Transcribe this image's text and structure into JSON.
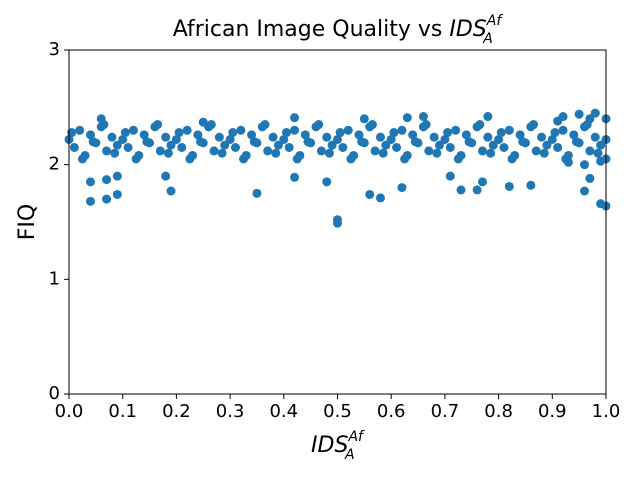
{
  "chart_data": {
    "type": "scatter",
    "title": "African Image Quality vs",
    "title_math": {
      "base": "IDS",
      "sup": "Af",
      "sub": "A"
    },
    "xlabel_math": {
      "base": "IDS",
      "sup": "Af",
      "sub": "A"
    },
    "ylabel": "FIQ",
    "color": "#1f77b4",
    "xlim": [
      0,
      1
    ],
    "ylim": [
      0,
      3
    ],
    "xticks": [
      {
        "value": 0,
        "label": "0.0"
      },
      0.1,
      0.2,
      0.3,
      0.4,
      0.5,
      0.6,
      0.7,
      0.8,
      0.9,
      {
        "value": 1,
        "label": "1.0"
      }
    ],
    "yticks": [
      0,
      1,
      2,
      3
    ],
    "x": [
      0,
      0.01,
      0.02,
      0.03,
      0.04,
      0.05,
      0.06,
      0.07,
      0.08,
      0.09,
      0.1,
      0.11,
      0.12,
      0.13,
      0.14,
      0.15,
      0.16,
      0.17,
      0.18,
      0.19,
      0.2,
      0.21,
      0.22,
      0.23,
      0.24,
      0.25,
      0.26,
      0.27,
      0.28,
      0.29,
      0.3,
      0.31,
      0.32,
      0.33,
      0.34,
      0.35,
      0.36,
      0.37,
      0.38,
      0.39,
      0.4,
      0.41,
      0.42,
      0.43,
      0.44,
      0.45,
      0.46,
      0.47,
      0.48,
      0.49,
      0.5,
      0.51,
      0.52,
      0.53,
      0.54,
      0.55,
      0.56,
      0.57,
      0.58,
      0.59,
      0.6,
      0.61,
      0.62,
      0.63,
      0.64,
      0.65,
      0.66,
      0.67,
      0.68,
      0.69,
      0.7,
      0.71,
      0.72,
      0.73,
      0.74,
      0.75,
      0.76,
      0.77,
      0.78,
      0.79,
      0.8,
      0.81,
      0.82,
      0.83,
      0.84,
      0.85,
      0.86,
      0.87,
      0.88,
      0.89,
      0.9,
      0.91,
      0.92,
      0.93,
      0.94,
      0.95,
      0.96,
      0.97,
      0.98,
      0.99,
      1,
      0.005,
      0.025,
      0.045,
      0.065,
      0.085,
      0.105,
      0.125,
      0.145,
      0.165,
      0.185,
      0.205,
      0.225,
      0.245,
      0.265,
      0.285,
      0.305,
      0.325,
      0.345,
      0.365,
      0.385,
      0.405,
      0.425,
      0.445,
      0.465,
      0.485,
      0.505,
      0.525,
      0.545,
      0.565,
      0.585,
      0.605,
      0.625,
      0.645,
      0.665,
      0.685,
      0.705,
      0.725,
      0.745,
      0.765,
      0.785,
      0.805,
      0.825,
      0.845,
      0.865,
      0.885,
      0.905,
      0.925,
      0.945,
      0.965,
      0.985,
      0.06,
      0.25,
      0.42,
      0.55,
      0.63,
      0.66,
      0.78,
      0.92,
      0.95,
      0.98,
      1,
      0.93,
      0.96,
      0.99,
      1,
      0.91,
      0.97,
      0.04,
      0.07,
      0.09,
      0.19,
      0.35,
      0.42,
      0.48,
      0.5,
      0.5,
      0.56,
      0.58,
      0.62,
      0.73,
      0.76,
      0.82,
      0.86,
      0.96,
      0.99,
      1,
      0.04,
      0.09,
      0.07,
      0.18,
      0.71,
      0.77,
      0.97
    ],
    "values": [
      2.22,
      2.15,
      2.3,
      2.08,
      2.26,
      2.19,
      2.33,
      2.12,
      2.24,
      2.17,
      2.22,
      2.15,
      2.3,
      2.08,
      2.26,
      2.19,
      2.33,
      2.12,
      2.24,
      2.17,
      2.22,
      2.15,
      2.3,
      2.08,
      2.26,
      2.19,
      2.33,
      2.12,
      2.24,
      2.17,
      2.22,
      2.15,
      2.3,
      2.08,
      2.26,
      2.19,
      2.33,
      2.12,
      2.24,
      2.17,
      2.22,
      2.15,
      2.3,
      2.08,
      2.26,
      2.19,
      2.33,
      2.12,
      2.24,
      2.17,
      2.22,
      2.15,
      2.3,
      2.08,
      2.26,
      2.19,
      2.33,
      2.12,
      2.24,
      2.17,
      2.22,
      2.15,
      2.3,
      2.08,
      2.26,
      2.19,
      2.33,
      2.12,
      2.24,
      2.17,
      2.22,
      2.15,
      2.3,
      2.08,
      2.26,
      2.19,
      2.33,
      2.12,
      2.24,
      2.17,
      2.22,
      2.15,
      2.3,
      2.08,
      2.26,
      2.19,
      2.33,
      2.12,
      2.24,
      2.17,
      2.22,
      2.15,
      2.3,
      2.08,
      2.26,
      2.19,
      2.33,
      2.12,
      2.24,
      2.17,
      2.22,
      2.28,
      2.05,
      2.2,
      2.35,
      2.1,
      2.28,
      2.05,
      2.2,
      2.35,
      2.1,
      2.28,
      2.05,
      2.2,
      2.35,
      2.1,
      2.28,
      2.05,
      2.2,
      2.35,
      2.1,
      2.28,
      2.05,
      2.2,
      2.35,
      2.1,
      2.28,
      2.05,
      2.2,
      2.35,
      2.1,
      2.28,
      2.05,
      2.2,
      2.35,
      2.1,
      2.28,
      2.05,
      2.2,
      2.35,
      2.1,
      2.28,
      2.05,
      2.2,
      2.35,
      2.1,
      2.28,
      2.05,
      2.2,
      2.35,
      2.1,
      2.4,
      2.37,
      2.41,
      2.4,
      2.41,
      2.42,
      2.42,
      2.42,
      2.44,
      2.45,
      2.4,
      2.02,
      2.0,
      2.03,
      2.05,
      2.38,
      2.4,
      1.68,
      1.7,
      1.74,
      1.77,
      1.75,
      1.89,
      1.85,
      1.52,
      1.49,
      1.74,
      1.71,
      1.8,
      1.78,
      1.78,
      1.81,
      1.82,
      1.77,
      1.66,
      1.64,
      1.85,
      1.9,
      1.87,
      1.9,
      1.9,
      1.85,
      1.88
    ]
  }
}
